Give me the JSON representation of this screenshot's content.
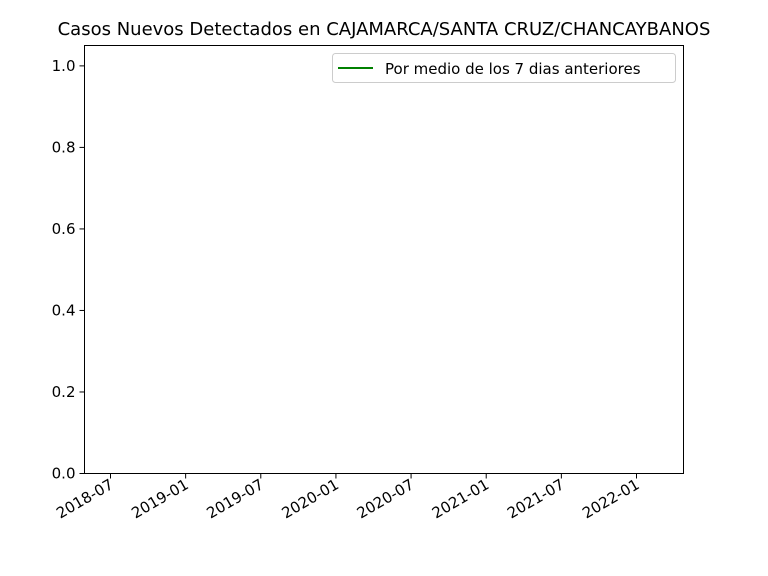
{
  "chart_data": {
    "type": "line",
    "title": "Casos Nuevos Detectados en CAJAMARCA/SANTA CRUZ/CHANCAYBANOS",
    "xlabel": "",
    "ylabel": "",
    "x_tick_labels": [
      "2018-07",
      "2019-01",
      "2019-07",
      "2020-01",
      "2020-07",
      "2021-01",
      "2021-07",
      "2022-01"
    ],
    "y_tick_values": [
      0.0,
      0.2,
      0.4,
      0.6,
      0.8,
      1.0
    ],
    "y_tick_labels": [
      "0.0",
      "0.2",
      "0.4",
      "0.6",
      "0.8",
      "1.0"
    ],
    "ylim": [
      0,
      1.05
    ],
    "grid": false,
    "legend_position": "top-right",
    "series": [
      {
        "name": "Por medio de los 7 dias anteriores",
        "color": "#008000",
        "x": [],
        "y": []
      }
    ]
  }
}
